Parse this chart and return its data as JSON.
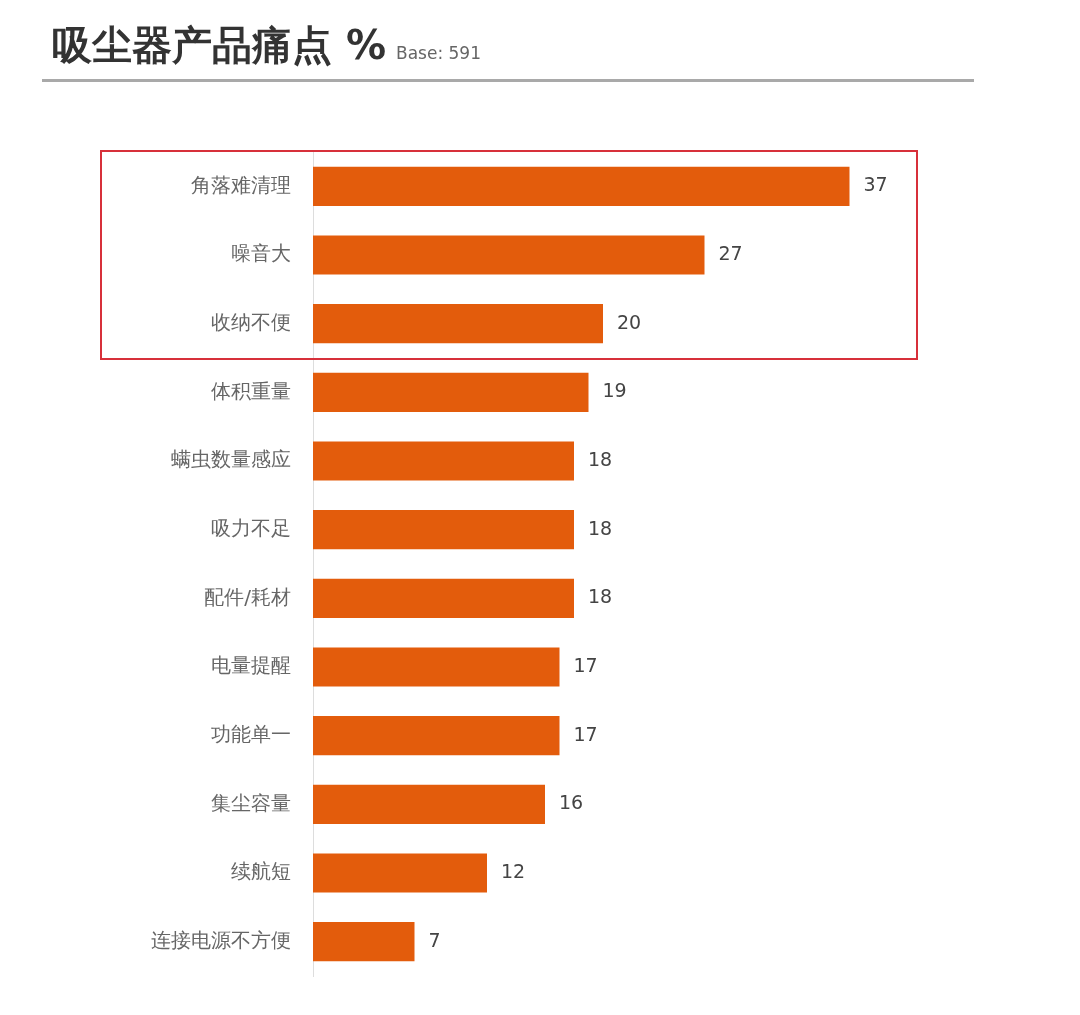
{
  "chart_data": {
    "type": "bar",
    "orientation": "horizontal",
    "title": "吸尘器产品痛点 %",
    "subtitle": "Base: 591",
    "categories": [
      "角落难清理",
      "噪音大",
      "收纳不便",
      "体积重量",
      "螨虫数量感应",
      "吸力不足",
      "配件/耗材",
      "电量提醒",
      "功能单一",
      "集尘容量",
      "续航短",
      "连接电源不方便"
    ],
    "values": [
      37,
      27,
      20,
      19,
      18,
      18,
      18,
      17,
      17,
      16,
      12,
      7
    ],
    "color": "#e35c0c",
    "data_labels": true,
    "grid": false,
    "legend": false,
    "tick_labels": "y"
  }
}
